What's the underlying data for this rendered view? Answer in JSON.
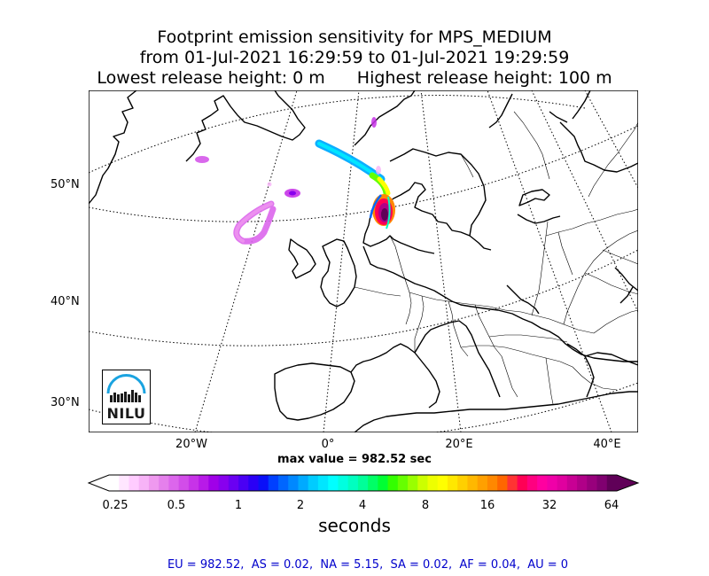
{
  "title": {
    "line1": "Footprint emission sensitivity for MPS_MEDIUM",
    "line2": "from 01-Jul-2021 16:29:59 to 01-Jul-2021 19:29:59",
    "line3_left": "Lowest release height: 0 m",
    "line3_right": "Highest release height: 100 m"
  },
  "map": {
    "lat_labels": [
      "50°N",
      "40°N",
      "30°N"
    ],
    "lon_labels": [
      "20°W",
      "0°",
      "20°E",
      "40°E"
    ],
    "logo_text": "NILU",
    "logo_color": "#1aa3e0"
  },
  "max_value_text": "max value = 982.52 sec",
  "colorbar": {
    "ticks": [
      "0.25",
      "0.5",
      "1",
      "2",
      "4",
      "8",
      "16",
      "32",
      "64"
    ],
    "unit_label": "seconds",
    "colors": [
      "#ffffff",
      "#ffe6ff",
      "#ffccff",
      "#f7b3f7",
      "#ef99ef",
      "#e580ec",
      "#dc66ec",
      "#d24de9",
      "#c733e8",
      "#b81ae8",
      "#a000e8",
      "#8800ee",
      "#6a00f2",
      "#4a00f4",
      "#2a00f6",
      "#0a10f8",
      "#0040ff",
      "#0066ff",
      "#0088ff",
      "#00aaff",
      "#00ccff",
      "#00e6ff",
      "#00ffff",
      "#00ffe0",
      "#00ffc0",
      "#00ff99",
      "#00ff66",
      "#00ff33",
      "#33ff00",
      "#66ff00",
      "#99ff00",
      "#ccff00",
      "#eeff00",
      "#ffff00",
      "#ffe800",
      "#ffd000",
      "#ffb800",
      "#ffa000",
      "#ff8800",
      "#ff6600",
      "#ff3333",
      "#ff0055",
      "#ff0080",
      "#ff00a0",
      "#f000a8",
      "#e0009f",
      "#c80094",
      "#b00088",
      "#98007c",
      "#800070",
      "#600058"
    ]
  },
  "footer": "EU = 982.52,  AS = 0.02,  NA = 5.15,  SA = 0.02,  AF = 0.04,  AU = 0"
}
